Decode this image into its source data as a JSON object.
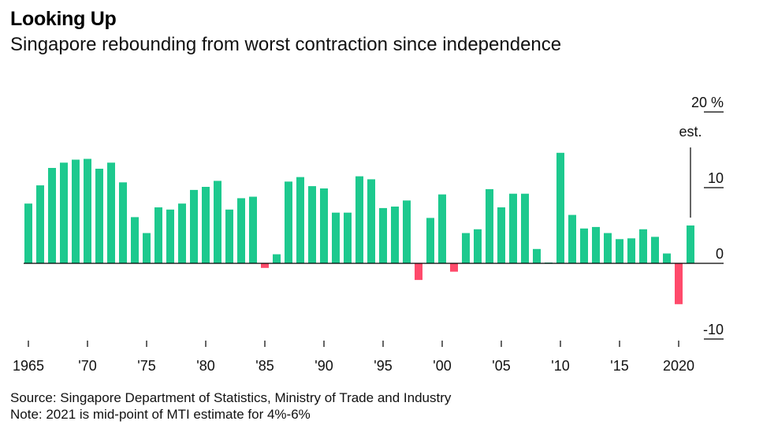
{
  "header": {
    "title": "Looking Up",
    "subtitle": "Singapore rebounding from worst contraction since independence"
  },
  "footer": {
    "source": "Source: Singapore Department of Statistics, Ministry of Trade and Industry",
    "note": "Note: 2021 is mid-point of MTI estimate for 4%-6%"
  },
  "chart_data": {
    "type": "bar",
    "title": "Looking Up",
    "subtitle": "Singapore rebounding from worst contraction since independence",
    "y_unit": "%",
    "ylim": [
      -10,
      20
    ],
    "y_ticks": [
      20,
      10,
      0,
      -10
    ],
    "y_tick_labels": [
      "20 %",
      "10",
      "0",
      "-10"
    ],
    "x_tick_years": [
      1965,
      1970,
      1975,
      1980,
      1985,
      1990,
      1995,
      2000,
      2005,
      2010,
      2015,
      2020
    ],
    "x_tick_labels": [
      "1965",
      "'70",
      "'75",
      "'80",
      "'85",
      "'90",
      "'95",
      "'00",
      "'05",
      "'10",
      "'15",
      "2020"
    ],
    "positive_color": "#1dc98e",
    "negative_color": "#ff4a6b",
    "annotation": {
      "text": "est.",
      "year": 2021
    },
    "grid": false,
    "categories": [
      1965,
      1966,
      1967,
      1968,
      1969,
      1970,
      1971,
      1972,
      1973,
      1974,
      1975,
      1976,
      1977,
      1978,
      1979,
      1980,
      1981,
      1982,
      1983,
      1984,
      1985,
      1986,
      1987,
      1988,
      1989,
      1990,
      1991,
      1992,
      1993,
      1994,
      1995,
      1996,
      1997,
      1998,
      1999,
      2000,
      2001,
      2002,
      2003,
      2004,
      2005,
      2006,
      2007,
      2008,
      2009,
      2010,
      2011,
      2012,
      2013,
      2014,
      2015,
      2016,
      2017,
      2018,
      2019,
      2020,
      2021
    ],
    "values": [
      7.9,
      10.3,
      12.6,
      13.3,
      13.7,
      13.8,
      12.5,
      13.3,
      10.7,
      6.1,
      4.0,
      7.4,
      7.1,
      7.9,
      9.7,
      10.1,
      10.9,
      7.1,
      8.6,
      8.8,
      -0.6,
      1.2,
      10.8,
      11.4,
      10.2,
      9.9,
      6.7,
      6.7,
      11.5,
      11.1,
      7.3,
      7.5,
      8.3,
      -2.2,
      6.0,
      9.1,
      -1.1,
      4.0,
      4.5,
      9.8,
      7.4,
      9.2,
      9.2,
      1.9,
      0.1,
      14.6,
      6.4,
      4.6,
      4.8,
      4.0,
      3.2,
      3.3,
      4.5,
      3.5,
      1.3,
      -5.4,
      5.0
    ]
  }
}
